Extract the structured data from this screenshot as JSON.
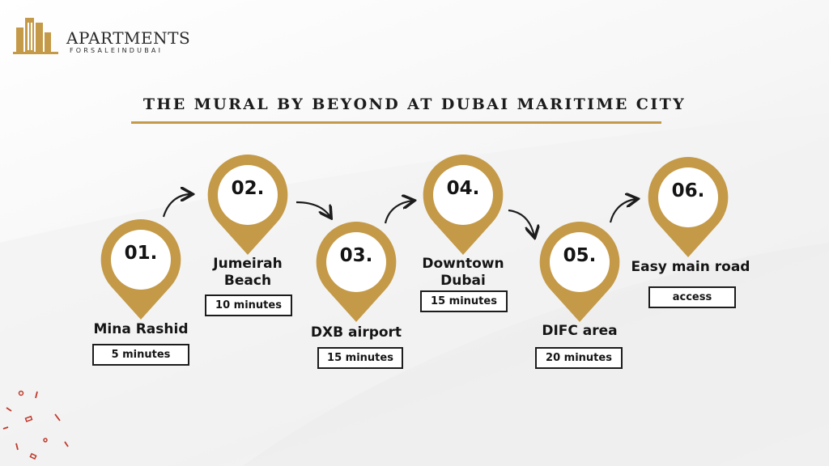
{
  "logo": {
    "name": "APARTMENTS",
    "sub": "FORSALEINDUBAI"
  },
  "title": "THE MURAL BY BEYOND AT DUBAI MARITIME CITY",
  "colors": {
    "gold": "#c49a48",
    "dark": "#1c1c1c",
    "accent_red": "#c0392b"
  },
  "steps": [
    {
      "number": "01.",
      "label": "Mina Rashid",
      "time": "5 minutes"
    },
    {
      "number": "02.",
      "label": "Jumeirah\nBeach",
      "time": "10 minutes"
    },
    {
      "number": "03.",
      "label": "DXB airport",
      "time": "15 minutes"
    },
    {
      "number": "04.",
      "label": "Downtown\nDubai",
      "time": "15 minutes"
    },
    {
      "number": "05.",
      "label": "DIFC area",
      "time": "20 minutes"
    },
    {
      "number": "06.",
      "label": "Easy main road",
      "time": "access"
    }
  ]
}
